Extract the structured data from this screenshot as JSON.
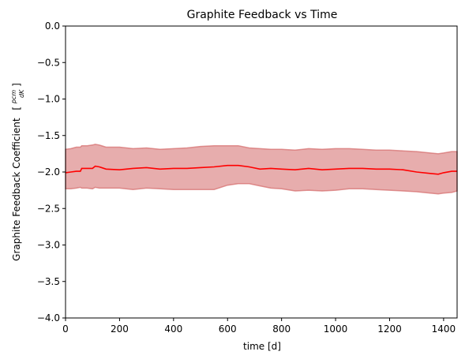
{
  "chart_data": {
    "type": "line",
    "title": "Graphite Feedback vs Time",
    "xlabel": "time [d]",
    "ylabel": "Graphite Feedback Coefficient",
    "ylabel_unit": {
      "open": "[",
      "numerator": "pcm",
      "denominator": "dK",
      "close": "]"
    },
    "xlim": [
      0,
      1450
    ],
    "ylim": [
      -4.0,
      0.0
    ],
    "xticks": [
      0,
      200,
      400,
      600,
      800,
      1000,
      1200,
      1400
    ],
    "xtick_labels": [
      "0",
      "200",
      "400",
      "600",
      "800",
      "1000",
      "1200",
      "1400"
    ],
    "yticks": [
      0.0,
      -0.5,
      -1.0,
      -1.5,
      -2.0,
      -2.5,
      -3.0,
      -3.5,
      -4.0
    ],
    "ytick_labels": [
      "0.0",
      "−0.5",
      "−1.0",
      "−1.5",
      "−2.0",
      "−2.5",
      "−3.0",
      "−3.5",
      "−4.0"
    ],
    "grid": false,
    "line_color": "#ff0000",
    "band_color": "#d46a6a",
    "series": [
      {
        "x": [
          0,
          20,
          40,
          55,
          60,
          80,
          100,
          110,
          125,
          150,
          200,
          250,
          300,
          350,
          400,
          450,
          500,
          550,
          600,
          640,
          680,
          720,
          760,
          800,
          850,
          900,
          950,
          1000,
          1050,
          1100,
          1150,
          1200,
          1250,
          1300,
          1350,
          1380,
          1400,
          1430,
          1450
        ],
        "mean": [
          -2.01,
          -2.0,
          -1.99,
          -1.99,
          -1.95,
          -1.95,
          -1.95,
          -1.92,
          -1.93,
          -1.96,
          -1.97,
          -1.95,
          -1.94,
          -1.96,
          -1.95,
          -1.95,
          -1.94,
          -1.93,
          -1.91,
          -1.91,
          -1.93,
          -1.96,
          -1.95,
          -1.96,
          -1.97,
          -1.95,
          -1.97,
          -1.96,
          -1.95,
          -1.95,
          -1.96,
          -1.96,
          -1.97,
          -2.0,
          -2.02,
          -2.03,
          -2.01,
          -1.99,
          -1.99
        ],
        "upper": [
          -1.69,
          -1.68,
          -1.66,
          -1.66,
          -1.64,
          -1.64,
          -1.63,
          -1.62,
          -1.63,
          -1.66,
          -1.66,
          -1.68,
          -1.67,
          -1.69,
          -1.68,
          -1.67,
          -1.65,
          -1.64,
          -1.64,
          -1.64,
          -1.67,
          -1.68,
          -1.69,
          -1.69,
          -1.7,
          -1.68,
          -1.69,
          -1.68,
          -1.68,
          -1.69,
          -1.7,
          -1.7,
          -1.71,
          -1.72,
          -1.74,
          -1.75,
          -1.74,
          -1.72,
          -1.72
        ],
        "lower": [
          -2.23,
          -2.23,
          -2.22,
          -2.21,
          -2.22,
          -2.22,
          -2.23,
          -2.21,
          -2.22,
          -2.22,
          -2.22,
          -2.24,
          -2.22,
          -2.23,
          -2.24,
          -2.24,
          -2.24,
          -2.24,
          -2.18,
          -2.16,
          -2.16,
          -2.19,
          -2.22,
          -2.23,
          -2.26,
          -2.25,
          -2.26,
          -2.25,
          -2.23,
          -2.23,
          -2.24,
          -2.25,
          -2.26,
          -2.27,
          -2.29,
          -2.3,
          -2.29,
          -2.28,
          -2.26
        ]
      }
    ]
  }
}
